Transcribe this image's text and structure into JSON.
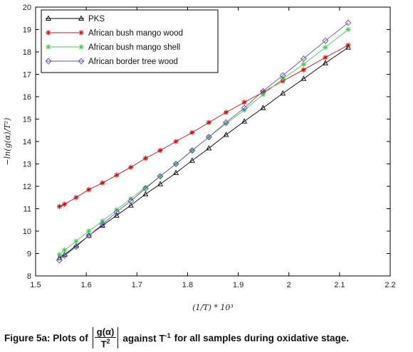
{
  "chart_data": {
    "type": "line",
    "xlabel": "(1/T) * 10³",
    "ylabel": "−ln(g(α)/T²)",
    "xlim": [
      1.5,
      2.2
    ],
    "ylim": [
      8,
      20
    ],
    "xticks": [
      "1.5",
      "1.6",
      "1.7",
      "1.8",
      "1.9",
      "2",
      "2.1",
      "2.2"
    ],
    "yticks": [
      "8",
      "9",
      "10",
      "11",
      "12",
      "13",
      "14",
      "15",
      "16",
      "17",
      "18",
      "19",
      "20"
    ],
    "grid": false,
    "legend_position": "top-left",
    "series": [
      {
        "name": "PKS",
        "color": "#000000",
        "marker": "triangle",
        "x": [
          1.547,
          1.557,
          1.58,
          1.605,
          1.632,
          1.66,
          1.688,
          1.717,
          1.746,
          1.777,
          1.809,
          1.842,
          1.876,
          1.912,
          1.949,
          1.988,
          2.029,
          2.072,
          2.117
        ],
        "y": [
          8.8,
          8.95,
          9.35,
          9.8,
          10.25,
          10.7,
          11.15,
          11.65,
          12.1,
          12.6,
          13.15,
          13.7,
          14.3,
          14.9,
          15.5,
          16.15,
          16.8,
          17.5,
          18.2
        ]
      },
      {
        "name": "African bush mango wood",
        "color": "#cc1111",
        "marker": "star",
        "x": [
          1.547,
          1.557,
          1.58,
          1.605,
          1.632,
          1.66,
          1.688,
          1.717,
          1.746,
          1.777,
          1.809,
          1.842,
          1.876,
          1.912,
          1.949,
          1.988,
          2.029,
          2.072,
          2.117
        ],
        "y": [
          11.1,
          11.2,
          11.5,
          11.85,
          12.15,
          12.5,
          12.85,
          13.25,
          13.6,
          14.0,
          14.4,
          14.85,
          15.3,
          15.75,
          16.2,
          16.7,
          17.2,
          17.75,
          18.3
        ]
      },
      {
        "name": "African bush mango shell",
        "color": "#44cc55",
        "marker": "star",
        "x": [
          1.547,
          1.557,
          1.58,
          1.605,
          1.632,
          1.66,
          1.688,
          1.717,
          1.746,
          1.777,
          1.809,
          1.842,
          1.876,
          1.912,
          1.949,
          1.988,
          2.029,
          2.072,
          2.117
        ],
        "y": [
          8.95,
          9.15,
          9.55,
          10.0,
          10.45,
          10.95,
          11.45,
          11.95,
          12.45,
          13.0,
          13.6,
          14.2,
          14.8,
          15.4,
          16.1,
          16.8,
          17.45,
          18.2,
          19.0
        ]
      },
      {
        "name": "African border tree wood",
        "color": "#6655aa",
        "marker": "diamond",
        "x": [
          1.547,
          1.557,
          1.58,
          1.605,
          1.632,
          1.66,
          1.688,
          1.717,
          1.746,
          1.777,
          1.809,
          1.842,
          1.876,
          1.912,
          1.949,
          1.988,
          2.029,
          2.072,
          2.117
        ],
        "y": [
          8.7,
          8.9,
          9.3,
          9.8,
          10.3,
          10.85,
          11.35,
          11.9,
          12.45,
          13.0,
          13.6,
          14.2,
          14.85,
          15.5,
          16.25,
          16.95,
          17.7,
          18.5,
          19.3
        ]
      }
    ]
  },
  "caption": {
    "before": "Figure 5a: Plots of",
    "frac_num": "g(α)",
    "frac_den_base": "T",
    "frac_den_sup": "2",
    "middle": "against T",
    "middle_sup": "-1",
    "after": "for all samples during oxidative stage."
  }
}
